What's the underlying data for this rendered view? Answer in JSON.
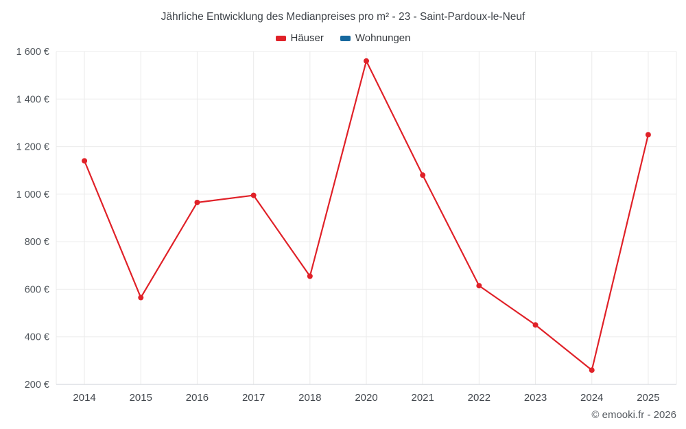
{
  "chart_data": {
    "type": "line",
    "title": "Jährliche Entwicklung des Medianpreises pro m² - 23 - Saint-Pardoux-le-Neuf",
    "xlabel": "",
    "ylabel": "",
    "categories": [
      "2014",
      "2015",
      "2016",
      "2017",
      "2018",
      "2020",
      "2021",
      "2022",
      "2023",
      "2024",
      "2025"
    ],
    "series": [
      {
        "name": "Häuser",
        "color": "#e02128",
        "values": [
          1140,
          565,
          965,
          995,
          655,
          1560,
          1080,
          615,
          450,
          260,
          1250
        ]
      },
      {
        "name": "Wohnungen",
        "color": "#16689e",
        "values": []
      }
    ],
    "ylim": [
      200,
      1600
    ],
    "yticks": [
      {
        "value": 200,
        "label": "200 €"
      },
      {
        "value": 400,
        "label": "400 €"
      },
      {
        "value": 600,
        "label": "600 €"
      },
      {
        "value": 800,
        "label": "800 €"
      },
      {
        "value": 1000,
        "label": "1 000 €"
      },
      {
        "value": 1200,
        "label": "1 200 €"
      },
      {
        "value": 1400,
        "label": "1 400 €"
      },
      {
        "value": 1600,
        "label": "1 600 €"
      }
    ],
    "grid": true,
    "legend_position": "top",
    "colors": {
      "grid": "#ebebeb",
      "axis": "#cdd2d7"
    }
  },
  "footer": {
    "copyright": "© emooki.fr - 2026"
  }
}
